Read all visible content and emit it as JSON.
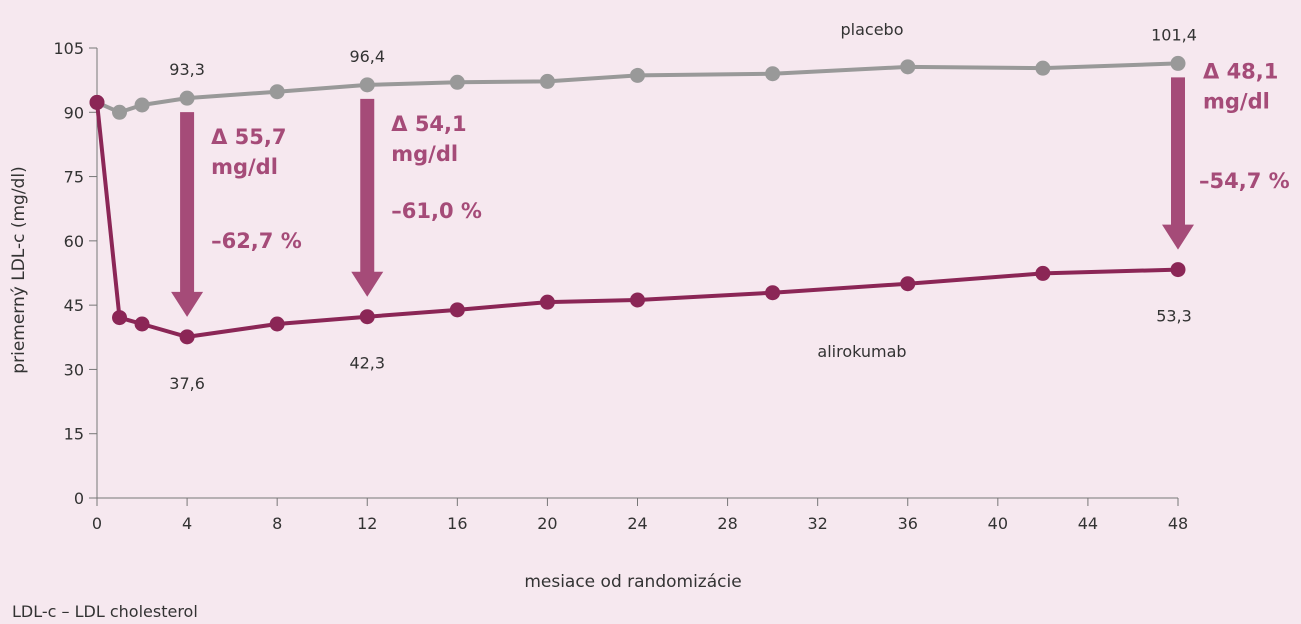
{
  "chart_data": {
    "type": "line",
    "xlabel": "mesiace od randomizácie",
    "ylabel": "priemerný LDL-c (mg/dl)",
    "xlim": [
      0,
      48
    ],
    "ylim": [
      0,
      105
    ],
    "x_ticks": [
      0,
      4,
      8,
      12,
      16,
      20,
      24,
      28,
      32,
      36,
      40,
      44,
      48
    ],
    "y_ticks": [
      0,
      15,
      30,
      45,
      60,
      75,
      90,
      105
    ],
    "grid": false,
    "series": [
      {
        "name": "placebo",
        "color": "#999999",
        "x": [
          0,
          1,
          2,
          4,
          8,
          12,
          16,
          20,
          24,
          30,
          36,
          42,
          48
        ],
        "y": [
          92.3,
          90.0,
          91.7,
          93.3,
          94.8,
          96.4,
          97.0,
          97.2,
          98.6,
          99.0,
          100.6,
          100.3,
          101.4
        ]
      },
      {
        "name": "alirokumab",
        "color": "#8b2656",
        "x": [
          0,
          1,
          2,
          4,
          8,
          12,
          16,
          20,
          24,
          30,
          36,
          42,
          48
        ],
        "y": [
          92.3,
          42.1,
          40.6,
          37.6,
          40.6,
          42.3,
          43.9,
          45.7,
          46.2,
          47.9,
          50.0,
          52.4,
          53.3
        ]
      }
    ],
    "data_labels": [
      {
        "text": "93,3",
        "series": "placebo",
        "x": 4
      },
      {
        "text": "96,4",
        "series": "placebo",
        "x": 12
      },
      {
        "text": "101,4",
        "series": "placebo",
        "x": 48
      },
      {
        "text": "37,6",
        "series": "alirokumab",
        "x": 4
      },
      {
        "text": "42,3",
        "series": "alirokumab",
        "x": 12
      },
      {
        "text": "53,3",
        "series": "alirokumab",
        "x": 48
      }
    ],
    "differences": [
      {
        "x": 4,
        "delta_line1": "Δ 55,7",
        "delta_line2": "mg/dl",
        "percent": "–62,7 %"
      },
      {
        "x": 12,
        "delta_line1": "Δ 54,1",
        "delta_line2": "mg/dl",
        "percent": "–61,0 %"
      },
      {
        "x": 48,
        "delta_line1": "Δ 48,1",
        "delta_line2": "mg/dl",
        "percent": "–54,7 %"
      }
    ],
    "arrow_color": "#a54b78"
  },
  "footnote": "LDL-c – LDL cholesterol"
}
